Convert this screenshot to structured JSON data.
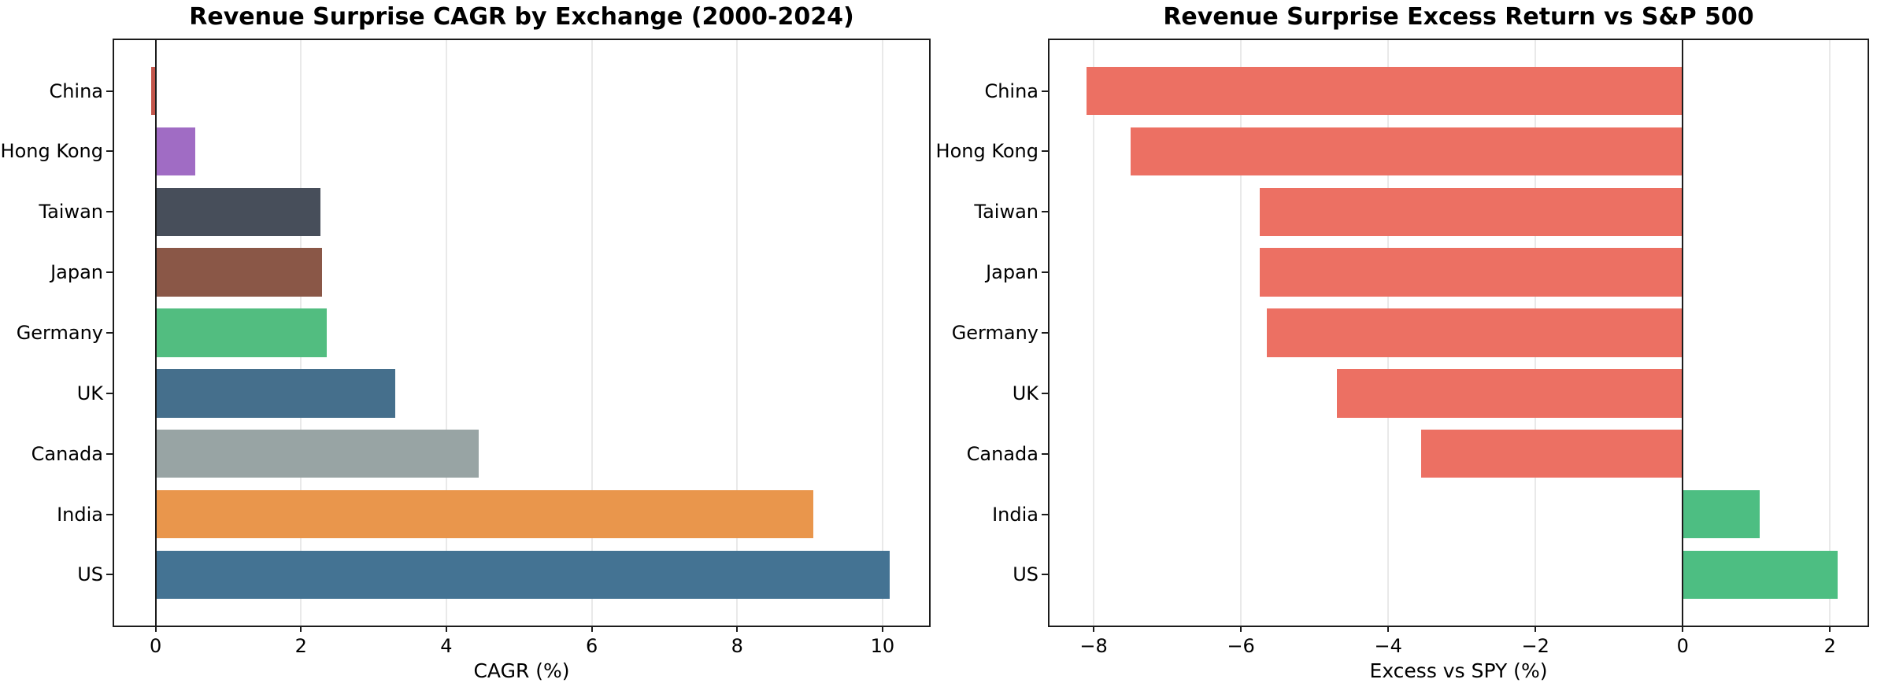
{
  "figure": {
    "background": "#ffffff"
  },
  "palette": {
    "spine_color": "#1c1c1c",
    "grid_color": "#e9e9e9",
    "zero_line_color": "#1c1c1c",
    "text_color": "#000000",
    "negative_bar_color": "#ec7063",
    "positive_bar_color": "#4dbe82"
  },
  "chart_data": [
    {
      "type": "bar",
      "orientation": "horizontal",
      "title": "Revenue Surprise CAGR by Exchange (2000-2024)",
      "xlabel": "CAGR (%)",
      "ylabel": "",
      "categories": [
        "China",
        "Hong Kong",
        "Taiwan",
        "Japan",
        "Germany",
        "UK",
        "Canada",
        "India",
        "US"
      ],
      "values": [
        -0.06,
        0.55,
        2.27,
        2.29,
        2.35,
        3.3,
        4.45,
        9.05,
        10.1
      ],
      "bar_colors": [
        "#c3564b",
        "#a06cc4",
        "#474e5a",
        "#8a5747",
        "#52bd80",
        "#456f8c",
        "#98a4a4",
        "#e9964c",
        "#447393"
      ],
      "xlim": [
        -0.57,
        10.64
      ],
      "xticks": [
        0,
        2,
        4,
        6,
        8,
        10
      ],
      "xtick_labels": [
        "0",
        "2",
        "4",
        "6",
        "8",
        "10"
      ],
      "grid": true,
      "zero_line": true,
      "legend": null
    },
    {
      "type": "bar",
      "orientation": "horizontal",
      "title": "Revenue Surprise Excess Return vs S&P 500",
      "xlabel": "Excess vs SPY (%)",
      "ylabel": "",
      "categories": [
        "China",
        "Hong Kong",
        "Taiwan",
        "Japan",
        "Germany",
        "UK",
        "Canada",
        "India",
        "US"
      ],
      "values": [
        -8.1,
        -7.5,
        -5.75,
        -5.75,
        -5.65,
        -4.7,
        -3.55,
        1.05,
        2.1
      ],
      "bar_colors": [
        "#ec7063",
        "#ec7063",
        "#ec7063",
        "#ec7063",
        "#ec7063",
        "#ec7063",
        "#ec7063",
        "#4dbe82",
        "#4dbe82"
      ],
      "xlim": [
        -8.6,
        2.51
      ],
      "xticks": [
        -8,
        -6,
        -4,
        -2,
        0,
        2
      ],
      "xtick_labels": [
        "−8",
        "−6",
        "−4",
        "−2",
        "0",
        "2"
      ],
      "grid": true,
      "zero_line": true,
      "legend": null
    }
  ]
}
